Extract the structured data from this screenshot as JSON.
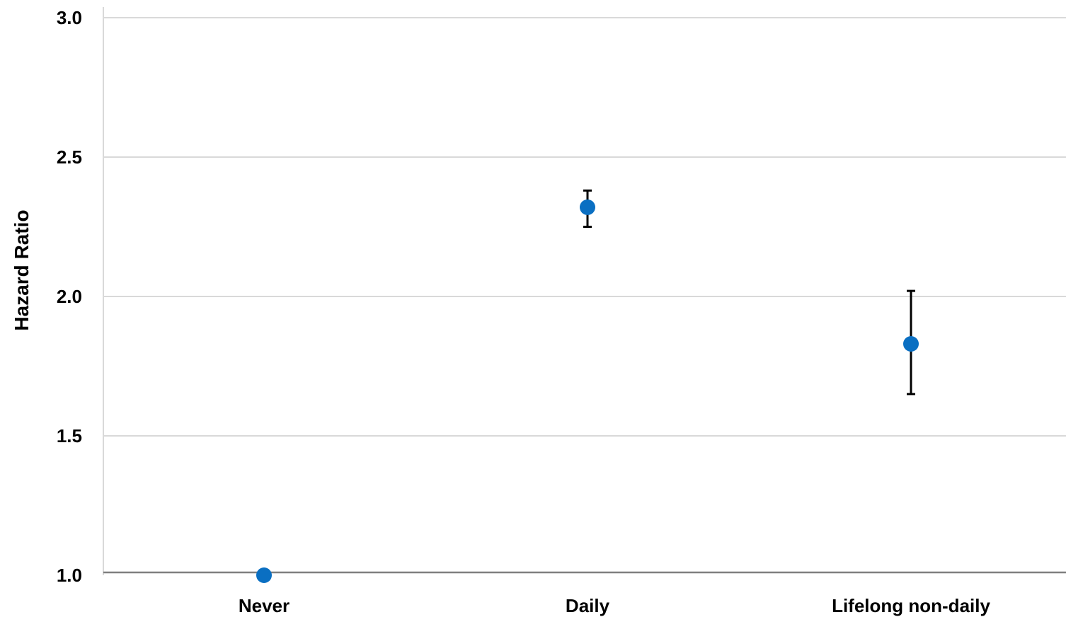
{
  "chart_data": {
    "type": "scatter",
    "title": "",
    "xlabel": "",
    "ylabel": "Hazard Ratio",
    "categories": [
      "Never",
      "Daily",
      "Lifelong non-daily"
    ],
    "series": [
      {
        "values": [
          1.0,
          2.32,
          1.83
        ],
        "error_low": [
          null,
          2.25,
          1.65
        ],
        "error_high": [
          null,
          2.38,
          2.02
        ]
      }
    ],
    "ylim": [
      1.0,
      3.0
    ],
    "yticks": [
      "1.0",
      "1.5",
      "2.0",
      "2.5",
      "3.0"
    ],
    "grid": "horizontal",
    "legend": "none",
    "colors": {
      "marker": "#0a6fc2",
      "error_bar": "#000000",
      "gridline": "#d9d9d9",
      "axis": "#7f7f7f"
    }
  }
}
